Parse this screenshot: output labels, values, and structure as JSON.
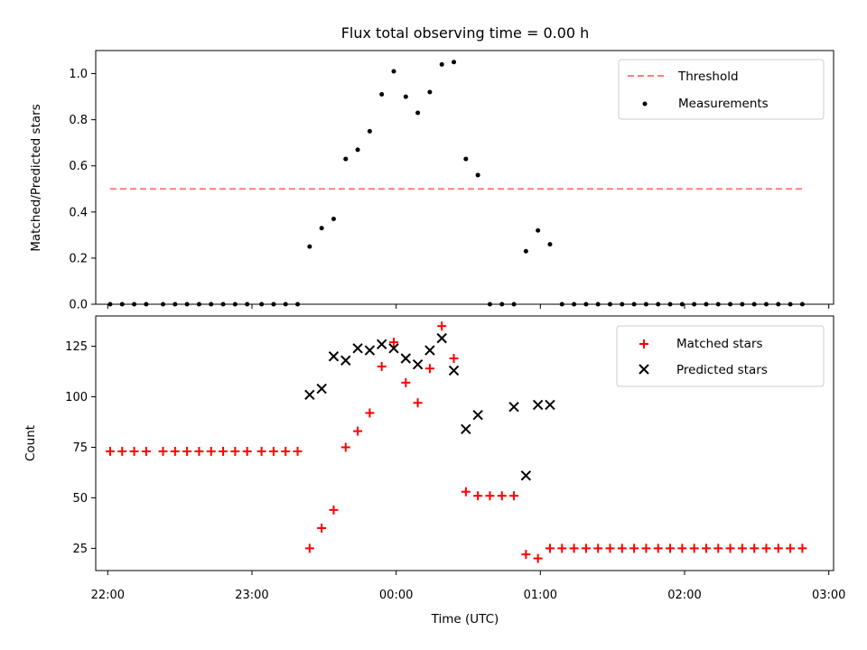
{
  "figure": {
    "title": "Flux total observing time = 0.00 h",
    "xlabel": "Time (UTC)"
  },
  "chart_data": [
    {
      "type": "line",
      "ylabel": "Matched/Predicted stars",
      "xlim": [
        "21:55",
        "03:02"
      ],
      "ylim": [
        0,
        1.1
      ],
      "yticks": [
        "0.0",
        "0.2",
        "0.4",
        "0.6",
        "0.8",
        "1.0"
      ],
      "grid": false,
      "legend_position": "upper right",
      "series": [
        {
          "name": "Threshold",
          "kind": "dashed-line",
          "color": "#ff7f7f",
          "x": [
            "22:01",
            "02:50"
          ],
          "y": [
            0.5,
            0.5
          ]
        },
        {
          "name": "Measurements",
          "kind": "scatter-dot",
          "color": "#000000",
          "x": [
            "22:01",
            "22:06",
            "22:11",
            "22:16",
            "22:23",
            "22:28",
            "22:33",
            "22:38",
            "22:43",
            "22:48",
            "22:53",
            "22:58",
            "23:04",
            "23:09",
            "23:14",
            "23:19",
            "23:24",
            "23:29",
            "23:34",
            "23:39",
            "23:44",
            "23:49",
            "23:54",
            "23:59",
            "00:04",
            "00:09",
            "00:14",
            "00:19",
            "00:24",
            "00:29",
            "00:34",
            "00:39",
            "00:44",
            "00:49",
            "00:54",
            "00:59",
            "01:04",
            "01:09",
            "01:14",
            "01:19",
            "01:24",
            "01:29",
            "01:34",
            "01:39",
            "01:44",
            "01:49",
            "01:54",
            "01:59",
            "02:04",
            "02:09",
            "02:14",
            "02:19",
            "02:24",
            "02:29",
            "02:34",
            "02:39",
            "02:44",
            "02:49"
          ],
          "y": [
            0,
            0,
            0,
            0,
            0,
            0,
            0,
            0,
            0,
            0,
            0,
            0,
            0,
            0,
            0,
            0,
            0.25,
            0.33,
            0.37,
            0.63,
            0.67,
            0.75,
            0.91,
            1.01,
            0.9,
            0.83,
            0.92,
            1.04,
            1.05,
            0.63,
            0.56,
            0,
            0,
            0,
            0.23,
            0.32,
            0.26,
            0,
            0,
            0,
            0,
            0,
            0,
            0,
            0,
            0,
            0,
            0,
            0,
            0,
            0,
            0,
            0,
            0,
            0,
            0,
            0,
            0
          ]
        }
      ]
    },
    {
      "type": "scatter",
      "ylabel": "Count",
      "xlim": [
        "21:55",
        "03:02"
      ],
      "ylim": [
        14,
        140
      ],
      "yticks": [
        "25",
        "50",
        "75",
        "100",
        "125"
      ],
      "xticks": [
        "22:00",
        "23:00",
        "00:00",
        "01:00",
        "02:00",
        "03:00"
      ],
      "grid": false,
      "legend_position": "upper right",
      "series": [
        {
          "name": "Matched stars",
          "kind": "plus",
          "color": "#ff0000",
          "x": [
            "22:01",
            "22:06",
            "22:11",
            "22:16",
            "22:23",
            "22:28",
            "22:33",
            "22:38",
            "22:43",
            "22:48",
            "22:53",
            "22:58",
            "23:04",
            "23:09",
            "23:14",
            "23:19",
            "23:24",
            "23:29",
            "23:34",
            "23:39",
            "23:44",
            "23:49",
            "23:54",
            "23:59",
            "00:04",
            "00:09",
            "00:14",
            "00:19",
            "00:24",
            "00:29",
            "00:34",
            "00:39",
            "00:44",
            "00:49",
            "00:54",
            "00:59",
            "01:04",
            "01:09",
            "01:14",
            "01:19",
            "01:24",
            "01:29",
            "01:34",
            "01:39",
            "01:44",
            "01:49",
            "01:54",
            "01:59",
            "02:04",
            "02:09",
            "02:14",
            "02:19",
            "02:24",
            "02:29",
            "02:34",
            "02:39",
            "02:44",
            "02:49"
          ],
          "y": [
            73,
            73,
            73,
            73,
            73,
            73,
            73,
            73,
            73,
            73,
            73,
            73,
            73,
            73,
            73,
            73,
            25,
            35,
            44,
            75,
            83,
            92,
            115,
            127,
            107,
            97,
            114,
            135,
            119,
            53,
            51,
            51,
            51,
            51,
            22,
            20,
            25,
            25,
            25,
            25,
            25,
            25,
            25,
            25,
            25,
            25,
            25,
            25,
            25,
            25,
            25,
            25,
            25,
            25,
            25,
            25,
            25,
            25
          ]
        },
        {
          "name": "Predicted stars",
          "kind": "x",
          "color": "#000000",
          "x": [
            "23:24",
            "23:29",
            "23:34",
            "23:39",
            "23:44",
            "23:49",
            "23:54",
            "23:59",
            "00:04",
            "00:09",
            "00:14",
            "00:19",
            "00:24",
            "00:29",
            "00:34",
            "00:49",
            "00:54",
            "00:59",
            "01:04"
          ],
          "y": [
            101,
            104,
            120,
            118,
            124,
            123,
            126,
            124,
            119,
            116,
            123,
            129,
            113,
            84,
            91,
            95,
            61,
            96,
            96
          ]
        }
      ]
    }
  ]
}
